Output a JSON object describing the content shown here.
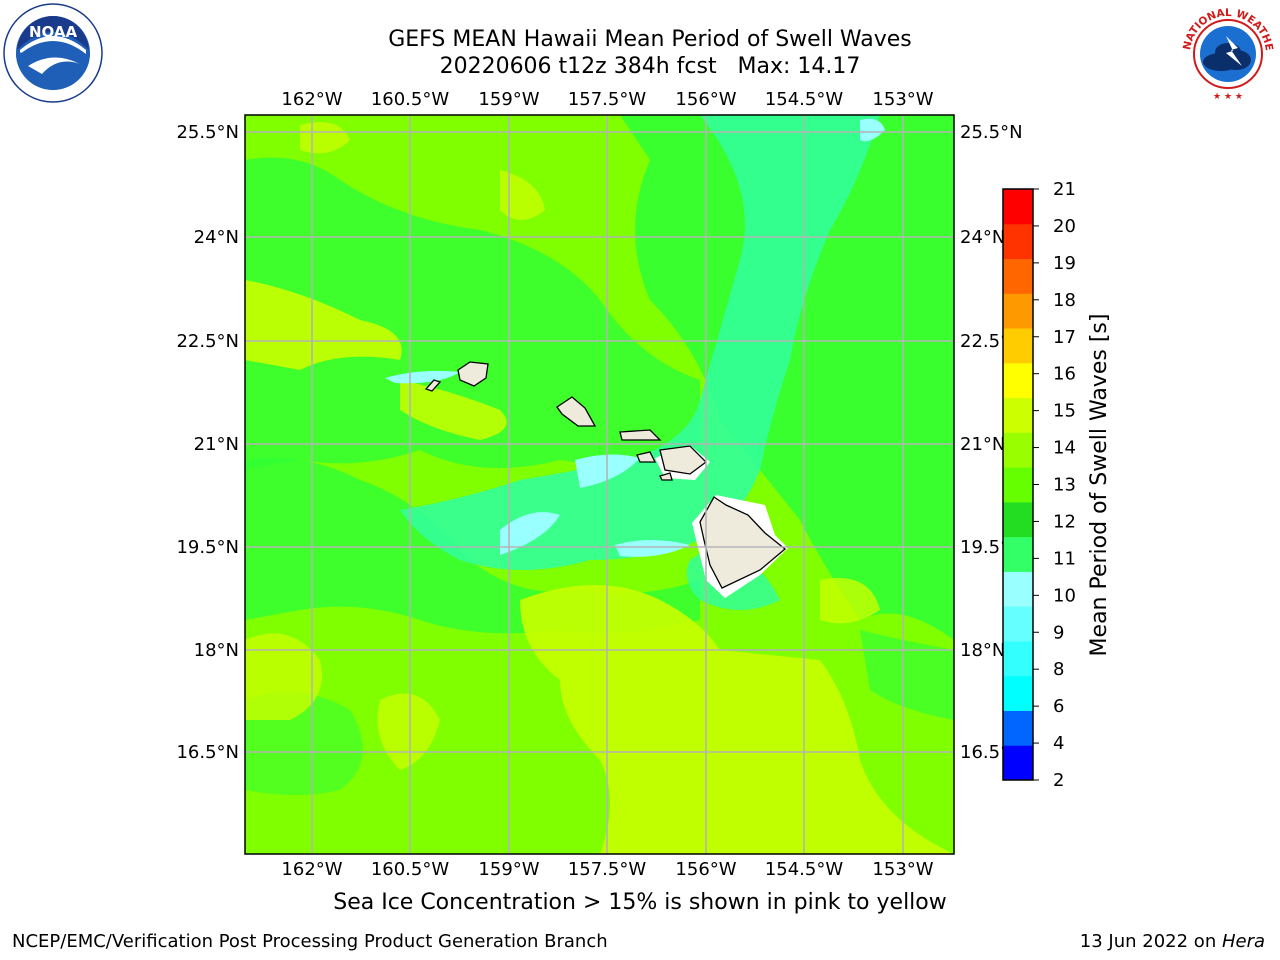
{
  "header": {
    "title_line1": "GEFS MEAN Hawaii Mean Period of Swell Waves",
    "title_line2": "20220606 t12z 384h fcst   Max: 14.17"
  },
  "logos": {
    "left": {
      "icon": "noaa-logo",
      "text": "NOAA",
      "ring_text": "NATIONAL OCEANIC AND ATMOSPHERIC ADMINISTRATION · U.S. DEPARTMENT OF COMMERCE"
    },
    "right": {
      "icon": "nws-logo",
      "ring_text": "NATIONAL WEATHER SERVICE"
    }
  },
  "map": {
    "lon_ticks": [
      "162°W",
      "160.5°W",
      "159°W",
      "157.5°W",
      "156°W",
      "154.5°W",
      "153°W"
    ],
    "lat_ticks": [
      "25.5°N",
      "24°N",
      "22.5°N",
      "21°N",
      "19.5°N",
      "18°N",
      "16.5°N"
    ],
    "gridlines": true,
    "field_colors": {
      "light_green": "#7fff00",
      "yellow_green": "#c8ff00",
      "mid_green": "#33ff33",
      "aqua_green": "#33ff99",
      "light_cyan": "#99ffff",
      "land": "#eeebdc"
    }
  },
  "colorbar": {
    "label": "Mean Period of Swell Waves [s]",
    "ticks": [
      "2",
      "4",
      "6",
      "8",
      "9",
      "10",
      "11",
      "12",
      "13",
      "14",
      "15",
      "16",
      "17",
      "18",
      "19",
      "20",
      "21"
    ],
    "bands": [
      "#0000ff",
      "#0066ff",
      "#00ffff",
      "#33ffff",
      "#66ffff",
      "#99ffff",
      "#33ff66",
      "#22dd22",
      "#66ff00",
      "#99ff00",
      "#ccff00",
      "#ffff00",
      "#ffcc00",
      "#ff9900",
      "#ff6600",
      "#ff3300",
      "#ff0000"
    ]
  },
  "notes": {
    "ice": "Sea Ice Concentration > 15% is shown in pink to yellow"
  },
  "footer": {
    "left": "NCEP/EMC/Verification Post Processing Product Generation Branch",
    "right_date": "13 Jun 2022 on ",
    "right_host": "Hera"
  }
}
